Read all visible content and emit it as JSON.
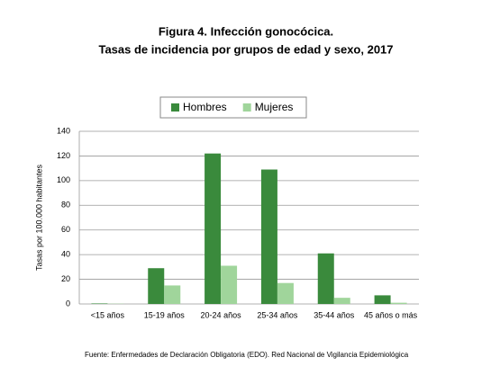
{
  "chart_data": {
    "type": "bar",
    "title": "Figura 4. Infección gonocócica.",
    "subtitle": "Tasas de incidencia por grupos de edad y sexo, 2017",
    "y_label": "Tasas por 100.000 habitantes",
    "categories": [
      "<15 años",
      "15-19 años",
      "20-24 años",
      "25-34 años",
      "35-44 años",
      "45 años o más"
    ],
    "series": [
      {
        "name": "Hombres",
        "color": "#3a8a3c",
        "values": [
          0.4,
          29,
          122,
          109,
          41,
          7
        ]
      },
      {
        "name": "Mujeres",
        "color": "#a0d59b",
        "values": [
          0.2,
          15,
          31,
          17,
          5,
          1
        ]
      }
    ],
    "ylim": [
      0,
      140
    ],
    "yticks": [
      0,
      20,
      40,
      60,
      80,
      100,
      120,
      140
    ],
    "grid": true,
    "legend": "top",
    "source": "Fuente: Enfermedades de Declaración Obligatoria (EDO). Red Nacional de Vigilancia Epidemiológica"
  }
}
